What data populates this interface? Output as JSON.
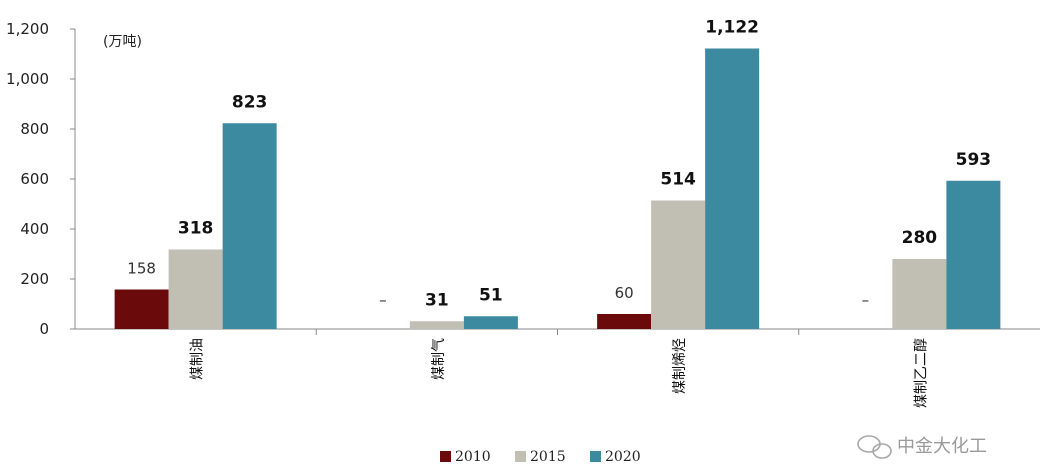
{
  "chart_data": {
    "type": "bar",
    "unit_label": "(万吨)",
    "categories": [
      "煤制油",
      "煤制气",
      "煤制烯烃",
      "煤制乙二醇"
    ],
    "series": [
      {
        "name": "2010",
        "color": "#6b0a0a",
        "values": [
          158,
          null,
          60,
          null
        ],
        "labels": [
          "158",
          "–",
          "60",
          "–"
        ]
      },
      {
        "name": "2015",
        "color": "#c1beb4",
        "values": [
          318,
          31,
          514,
          280
        ],
        "labels": [
          "318",
          "31",
          "514",
          "280"
        ]
      },
      {
        "name": "2020",
        "color": "#3c8aa0",
        "values": [
          823,
          51,
          1122,
          593
        ],
        "labels": [
          "823",
          "51",
          "1,122",
          "593"
        ]
      }
    ],
    "ylim": [
      0,
      1200
    ],
    "yticks": [
      0,
      200,
      400,
      600,
      800,
      1000,
      1200
    ],
    "ytick_labels": [
      "0",
      "200",
      "400",
      "600",
      "800",
      "1,000",
      "1,200"
    ],
    "legend_position": "bottom-center",
    "grid": false
  },
  "watermark": "中金大化工"
}
